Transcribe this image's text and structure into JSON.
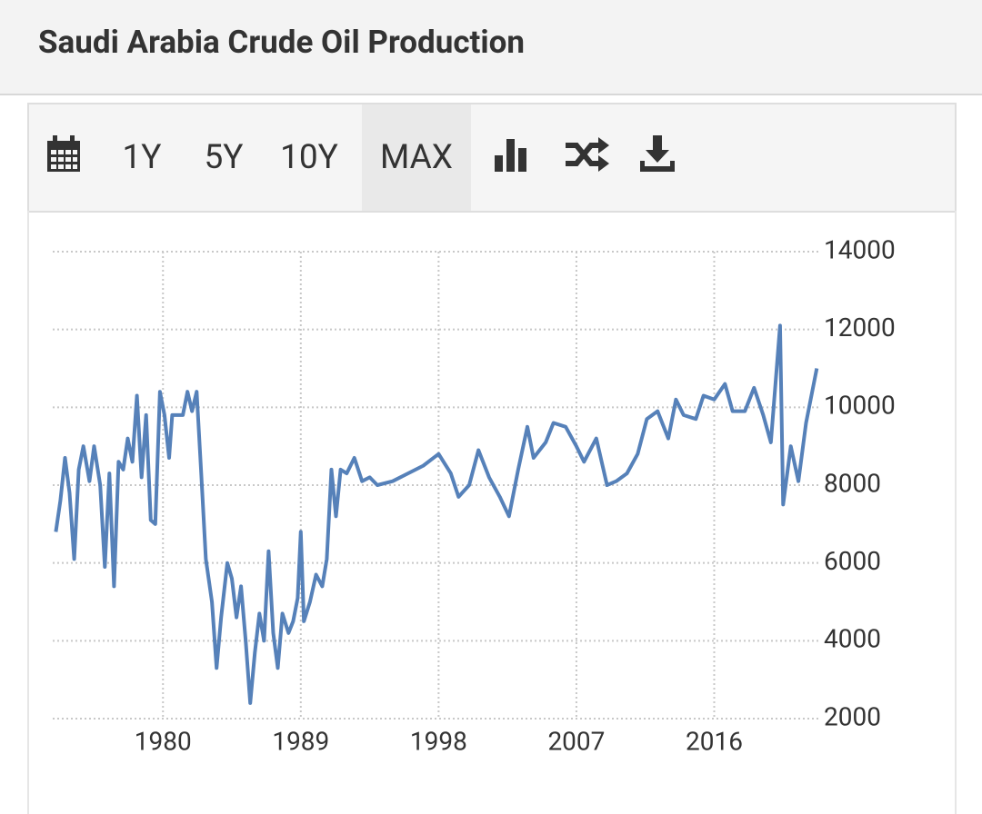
{
  "toolbar": {
    "buttons": [
      "1Y",
      "5Y",
      "10Y",
      "MAX"
    ],
    "active": 3
  },
  "chart_data": {
    "type": "line",
    "title": "Saudi Arabia Crude Oil Production",
    "color": "#5681b9",
    "grid": true,
    "xlim": [
      1972.8,
      2022.8
    ],
    "xticks": [
      1980,
      1989,
      1998,
      2007,
      2016
    ],
    "ylim": [
      2000,
      14000
    ],
    "yticks": [
      2000,
      4000,
      6000,
      8000,
      10000,
      12000,
      14000
    ],
    "x": [
      1973.0,
      1973.3,
      1973.6,
      1973.9,
      1974.2,
      1974.5,
      1974.8,
      1975.2,
      1975.5,
      1975.9,
      1976.2,
      1976.5,
      1976.8,
      1977.1,
      1977.4,
      1977.7,
      1978.0,
      1978.3,
      1978.6,
      1978.9,
      1979.2,
      1979.5,
      1979.8,
      1980.1,
      1980.4,
      1980.6,
      1981.0,
      1981.3,
      1981.6,
      1981.9,
      1982.2,
      1982.5,
      1982.8,
      1983.2,
      1983.5,
      1983.8,
      1984.2,
      1984.5,
      1984.8,
      1985.1,
      1985.4,
      1985.7,
      1986.0,
      1986.3,
      1986.6,
      1986.9,
      1987.2,
      1987.5,
      1987.8,
      1988.2,
      1988.5,
      1988.8,
      1989.0,
      1989.2,
      1989.6,
      1990.0,
      1990.4,
      1990.7,
      1991.0,
      1991.3,
      1991.6,
      1992.0,
      1992.5,
      1993.0,
      1993.5,
      1994.0,
      1995.0,
      1996.0,
      1997.0,
      1998.0,
      1998.8,
      1999.3,
      2000.0,
      2000.6,
      2001.3,
      2002.0,
      2002.6,
      2003.2,
      2003.8,
      2004.2,
      2005.0,
      2005.5,
      2006.3,
      2007.0,
      2007.5,
      2008.3,
      2009.0,
      2009.6,
      2010.3,
      2011.0,
      2011.6,
      2012.3,
      2013.0,
      2013.5,
      2014.0,
      2014.8,
      2015.3,
      2016.0,
      2016.7,
      2017.2,
      2018.0,
      2018.6,
      2019.2,
      2019.7,
      2020.3,
      2020.5,
      2021.0,
      2021.5,
      2022.0,
      2022.7
    ],
    "values": [
      6800,
      7600,
      8700,
      7800,
      6100,
      8400,
      9000,
      8100,
      9000,
      8000,
      5900,
      8300,
      5400,
      8600,
      8400,
      9200,
      8600,
      10300,
      8200,
      9800,
      7100,
      7000,
      10400,
      9800,
      8700,
      9800,
      9800,
      9800,
      10400,
      9900,
      10400,
      8300,
      6100,
      5000,
      3300,
      4600,
      6000,
      5600,
      4600,
      5400,
      4000,
      2400,
      3700,
      4700,
      4000,
      6300,
      4200,
      3300,
      4700,
      4200,
      4500,
      5100,
      6800,
      4500,
      5000,
      5700,
      5400,
      6100,
      8400,
      7200,
      8400,
      8300,
      8700,
      8100,
      8200,
      8000,
      8100,
      8300,
      8500,
      8800,
      8300,
      7700,
      8000,
      8900,
      8200,
      7700,
      7200,
      8400,
      9500,
      8700,
      9100,
      9600,
      9500,
      9000,
      8600,
      9200,
      8000,
      8100,
      8300,
      8800,
      9700,
      9900,
      9200,
      10200,
      9800,
      9700,
      10300,
      10200,
      10600,
      9900,
      9900,
      10500,
      9800,
      9100,
      12100,
      7500,
      9000,
      8100,
      9600,
      11000
    ]
  }
}
